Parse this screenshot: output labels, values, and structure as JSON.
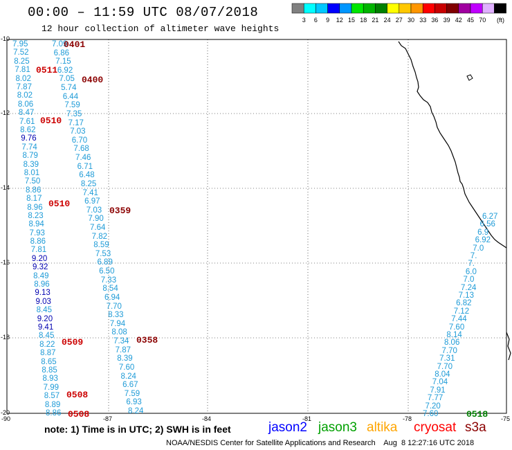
{
  "header": {
    "title": "00:00 – 11:59 UTC 08/07/2018",
    "subtitle": "12 hour collection of altimeter wave heights"
  },
  "colorbar": {
    "colors": [
      "#808080",
      "#00ffff",
      "#00c8ff",
      "#0000ff",
      "#0096ff",
      "#00e600",
      "#00b400",
      "#008000",
      "#ffff00",
      "#ffc800",
      "#ff9600",
      "#ff0000",
      "#c80000",
      "#800000",
      "#a000a0",
      "#c000ff",
      "#e0b0ff",
      "#000000"
    ],
    "labels": [
      "3",
      "6",
      "9",
      "12",
      "15",
      "18",
      "21",
      "24",
      "27",
      "30",
      "33",
      "36",
      "39",
      "42",
      "45",
      "70"
    ],
    "unit": "(ft)"
  },
  "axes": {
    "y_ticks": [
      "-10",
      "-12",
      "-14",
      "-16",
      "-18",
      "-20"
    ],
    "x_ticks": [
      "-90",
      "-87",
      "-84",
      "-81",
      "-78",
      "-75"
    ],
    "lat_range": [
      -20,
      -10
    ],
    "lon_range": [
      -90,
      -75
    ]
  },
  "times": [
    {
      "label": "0401",
      "color": "#8b0000"
    },
    {
      "label": "0511",
      "color": "#cc0000"
    },
    {
      "label": "0400",
      "color": "#8b0000"
    },
    {
      "label": "0510",
      "color": "#cc0000"
    },
    {
      "label": "0510",
      "color": "#cc0000"
    },
    {
      "label": "0359",
      "color": "#8b0000"
    },
    {
      "label": "0509",
      "color": "#cc0000"
    },
    {
      "label": "0358",
      "color": "#8b0000"
    },
    {
      "label": "0508",
      "color": "#cc0000"
    },
    {
      "label": "0508",
      "color": "#cc0000"
    },
    {
      "label": "0518",
      "color": "#008000"
    }
  ],
  "track_a": [
    "7.95",
    "7.52",
    "8.25",
    "7.81",
    "8.02",
    "7.87",
    "8.02",
    "8.06",
    "8.47",
    "7.61",
    "8.62",
    "9.76",
    "7.74",
    "8.79",
    "8.39",
    "8.01",
    "7.50",
    "8.86",
    "8.17",
    "8.96",
    "8.23",
    "8.94",
    "7.93",
    "8.86",
    "7.81",
    "9.20",
    "9.32",
    "8.49",
    "8.96",
    "9.13",
    "9.03",
    "8.45",
    "9.20",
    "9.41",
    "8.45",
    "8.22",
    "8.87",
    "8.65",
    "8.85",
    "8.93",
    "7.99",
    "8.57",
    "8.89",
    "8.86"
  ],
  "track_b": [
    "7.09",
    "6.86",
    "7.15",
    "6.92",
    "7.05",
    "5.74",
    "6.44",
    "7.59",
    "7.35",
    "7.17",
    "7.03",
    "6.70",
    "7.68",
    "7.46",
    "6.71",
    "6.48",
    "8.25",
    "7.41",
    "6.97",
    "7.03",
    "7.90",
    "7.64",
    "7.82",
    "8.59",
    "7.53",
    "6.89",
    "6.50",
    "7.33",
    "8.54",
    "6.94",
    "7.70",
    "8.33",
    "7.94",
    "8.08",
    "7.34",
    "7.87",
    "8.39",
    "7.60",
    "8.24",
    "6.67",
    "7.59",
    "6.93",
    "8.24"
  ],
  "track_c": [
    "6.27",
    "6.56",
    "6.9",
    "6.92",
    "7.0",
    "7.",
    "7.",
    "6.0",
    "7.0",
    "7.24",
    "7.13",
    "6.82",
    "7.12",
    "7.44",
    "7.60",
    "8.14",
    "8.06",
    "7.70",
    "7.31",
    "7.70",
    "8.04",
    "7.04",
    "7.91",
    "7.77",
    "7.20",
    "7.60"
  ],
  "note": "note:  1) Time is in UTC;  2) SWH is in feet",
  "legend": [
    {
      "label": "jason2",
      "color": "#0000ff"
    },
    {
      "label": "jason3",
      "color": "#00a000"
    },
    {
      "label": "altika",
      "color": "#ffa500"
    },
    {
      "label": "cryosat",
      "color": "#ff0000"
    },
    {
      "label": "s3a",
      "color": "#8b0000"
    }
  ],
  "footer": "NOAA/NESDIS Center for Satellite Applications and Research    Aug  8 12:27:16 UTC 2018"
}
